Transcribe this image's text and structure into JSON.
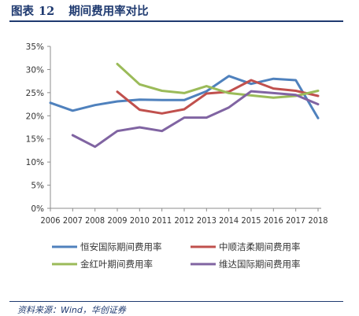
{
  "header": {
    "figure_label": "图表",
    "figure_number": "12",
    "title": "期间费用率对比"
  },
  "source": "资料来源：Wind，华创证券",
  "chart_data": {
    "type": "line",
    "title": "期间费用率对比",
    "xlabel": "",
    "ylabel": "",
    "categories": [
      "2006",
      "2007",
      "2008",
      "2009",
      "2010",
      "2011",
      "2012",
      "2013",
      "2014",
      "2015",
      "2016",
      "2017",
      "2018"
    ],
    "ylim": [
      0,
      35
    ],
    "yticks": [
      "0%",
      "5%",
      "10%",
      "15%",
      "20%",
      "25%",
      "30%",
      "35%"
    ],
    "grid": false,
    "legend_position": "bottom",
    "series": [
      {
        "name": "恒安国际期间费用率",
        "color": "#4f81bd",
        "values": [
          22.8,
          21.1,
          22.3,
          23.1,
          23.5,
          23.4,
          23.4,
          25.3,
          28.6,
          26.9,
          28.0,
          27.7,
          19.5
        ]
      },
      {
        "name": "中顺洁柔期间费用率",
        "color": "#c0504d",
        "values": [
          null,
          null,
          null,
          25.2,
          21.3,
          20.5,
          21.4,
          24.8,
          25.2,
          27.7,
          25.9,
          25.4,
          24.3
        ]
      },
      {
        "name": "金红叶期间费用率",
        "color": "#9bbb59",
        "values": [
          null,
          null,
          null,
          31.2,
          26.8,
          25.4,
          24.9,
          26.4,
          24.9,
          24.4,
          23.9,
          24.3,
          25.4
        ]
      },
      {
        "name": "维达国际期间费用率",
        "color": "#8064a2",
        "values": [
          null,
          15.8,
          13.3,
          16.7,
          17.5,
          16.7,
          19.6,
          19.6,
          21.8,
          25.3,
          24.9,
          24.5,
          22.5
        ]
      }
    ]
  }
}
